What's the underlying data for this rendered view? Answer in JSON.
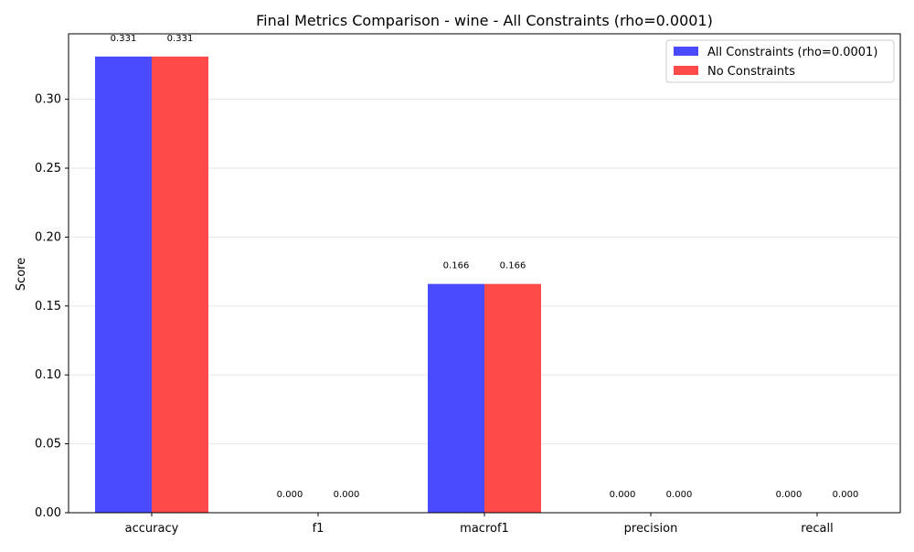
{
  "chart_data": {
    "type": "bar",
    "title": "Final Metrics Comparison - wine - All Constraints (rho=0.0001)",
    "xlabel": "",
    "ylabel": "Score",
    "categories": [
      "accuracy",
      "f1",
      "macrof1",
      "precision",
      "recall"
    ],
    "series": [
      {
        "name": "All Constraints (rho=0.0001)",
        "color": "#4a4aff",
        "values": [
          0.331,
          0.0,
          0.166,
          0.0,
          0.0
        ],
        "labels": [
          "0.331",
          "0.000",
          "0.166",
          "0.000",
          "0.000"
        ]
      },
      {
        "name": "No Constraints",
        "color": "#ff4a4a",
        "values": [
          0.331,
          0.0,
          0.166,
          0.0,
          0.0
        ],
        "labels": [
          "0.331",
          "0.000",
          "0.166",
          "0.000",
          "0.000"
        ]
      }
    ],
    "ylim": [
      0,
      0.3475
    ],
    "yticks": [
      0.0,
      0.05,
      0.1,
      0.15,
      0.2,
      0.25,
      0.3
    ],
    "ytick_labels": [
      "0.00",
      "0.05",
      "0.10",
      "0.15",
      "0.20",
      "0.25",
      "0.30"
    ],
    "grid": "y",
    "legend_position": "top-right"
  }
}
